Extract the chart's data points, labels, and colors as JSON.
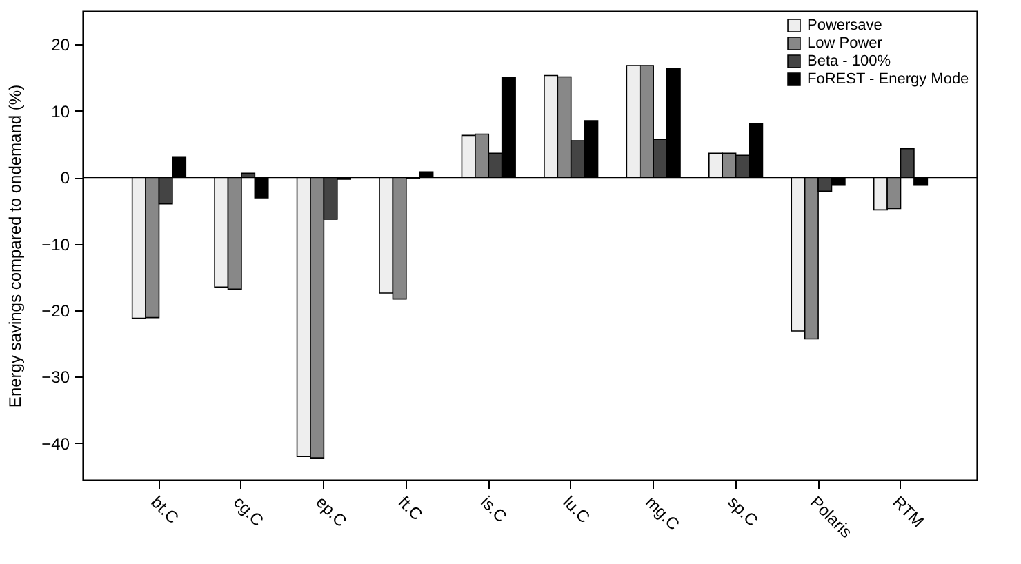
{
  "chart_data": {
    "type": "bar",
    "ylabel": "Energy savings compared to ondemand (%)",
    "categories": [
      "bt.C",
      "cg.C",
      "ep.C",
      "ft.C",
      "is.C",
      "lu.C",
      "mg.C",
      "sp.C",
      "Polaris",
      "RTM"
    ],
    "series": [
      {
        "name": "Powersave",
        "color": "#eeeeee",
        "values": [
          -21.2,
          -16.5,
          -42.0,
          -17.4,
          6.3,
          15.3,
          16.8,
          3.6,
          -23.1,
          -4.9
        ]
      },
      {
        "name": "Low Power",
        "color": "#888888",
        "values": [
          -21.1,
          -16.8,
          -42.2,
          -18.3,
          6.5,
          15.1,
          16.8,
          3.6,
          -24.3,
          -4.7
        ]
      },
      {
        "name": "Beta - 100%",
        "color": "#444444",
        "values": [
          -4.0,
          0.6,
          -6.3,
          -0.2,
          3.6,
          5.5,
          5.7,
          3.3,
          -2.1,
          4.3
        ]
      },
      {
        "name": "FoREST - Energy Mode",
        "color": "#000000",
        "values": [
          3.1,
          -3.1,
          -0.3,
          0.8,
          15.0,
          8.5,
          16.4,
          8.1,
          -1.2,
          -1.2
        ]
      }
    ],
    "ylim": [
      -45.5,
      25
    ],
    "yticks": [
      -40,
      -30,
      -20,
      -10,
      0,
      10,
      20
    ],
    "ref_lines": [
      {
        "axis": "y",
        "value": 0
      }
    ],
    "legend": "top right",
    "grid": false
  }
}
